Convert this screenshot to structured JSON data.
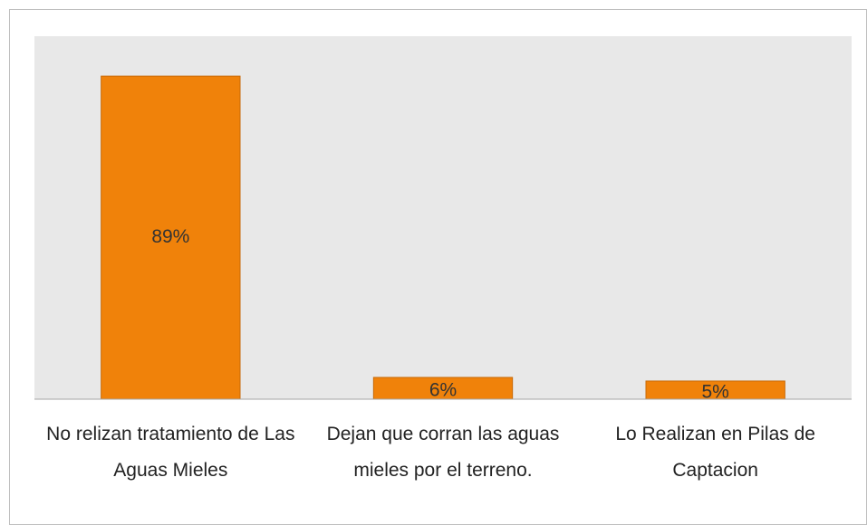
{
  "chart_data": {
    "type": "bar",
    "categories": [
      "No relizan tratamiento de Las Aguas Mieles",
      "Dejan que corran las aguas mieles por el terreno.",
      "Lo Realizan en Pilas de Captacion"
    ],
    "values": [
      89,
      6,
      5
    ],
    "value_labels": [
      "89%",
      "6%",
      "5%"
    ],
    "color": "#f0820a",
    "ylim": [
      0,
      100
    ]
  }
}
